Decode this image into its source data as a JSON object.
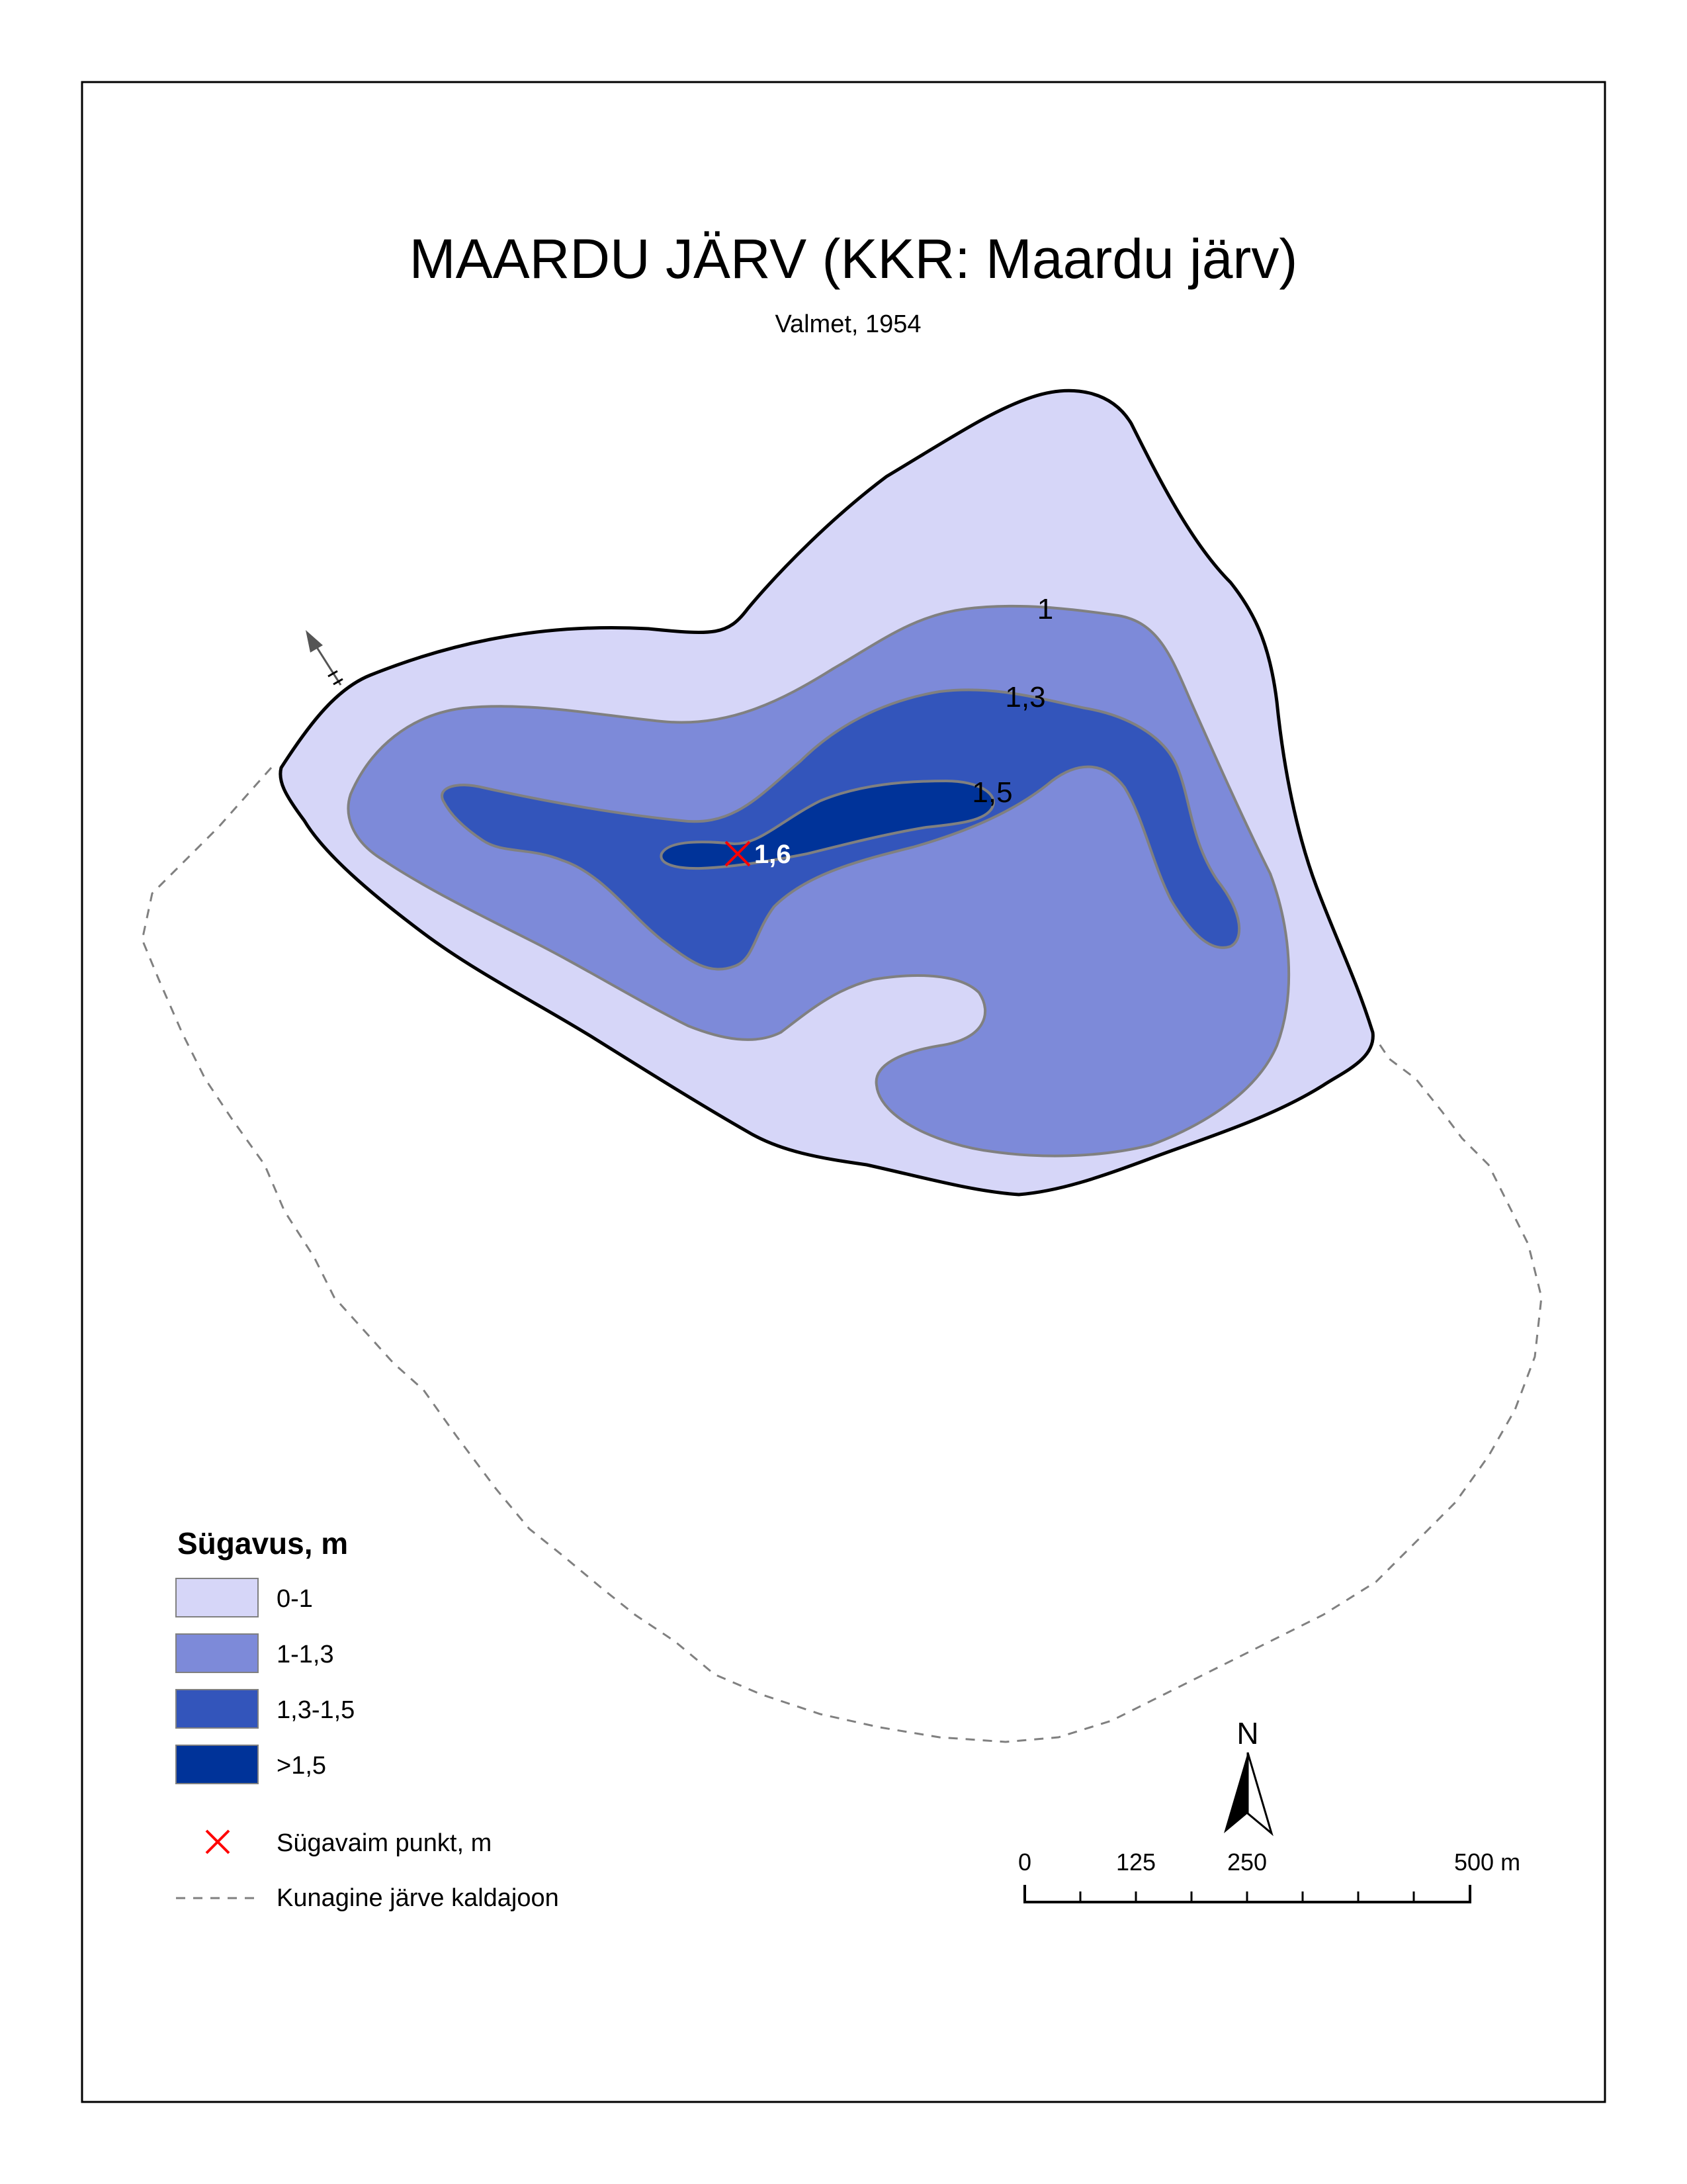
{
  "title": "MAARDU JÄRV (KKR: Maardu järv)",
  "subtitle": "Valmet, 1954",
  "colors": {
    "zone_0_1": "#d6d6f8",
    "zone_1_1_3": "#7d8ad9",
    "zone_1_3_1_5": "#3355bb",
    "zone_gt_1_5": "#003399",
    "shoreline": "#000000",
    "contour": "#808080",
    "deepest_marker": "#ff0000",
    "former_shoreline": "#808080"
  },
  "contour_labels": {
    "c1": "1",
    "c1_3": "1,3",
    "c1_5": "1,5"
  },
  "deepest_point": {
    "label": "1,6"
  },
  "legend": {
    "title": "Sügavus, m",
    "items": [
      {
        "label": "0-1",
        "color": "#d6d6f8"
      },
      {
        "label": "1-1,3",
        "color": "#7d8ad9"
      },
      {
        "label": "1,3-1,5",
        "color": "#3355bb"
      },
      {
        "label": ">1,5",
        "color": "#003399"
      }
    ],
    "deepest_label": "Sügavaim punkt, m",
    "former_shoreline_label": "Kunagine järve kaldajoon"
  },
  "north_arrow": {
    "label": "N"
  },
  "scale_bar": {
    "ticks": [
      "0",
      "125",
      "250",
      "500 m"
    ]
  }
}
